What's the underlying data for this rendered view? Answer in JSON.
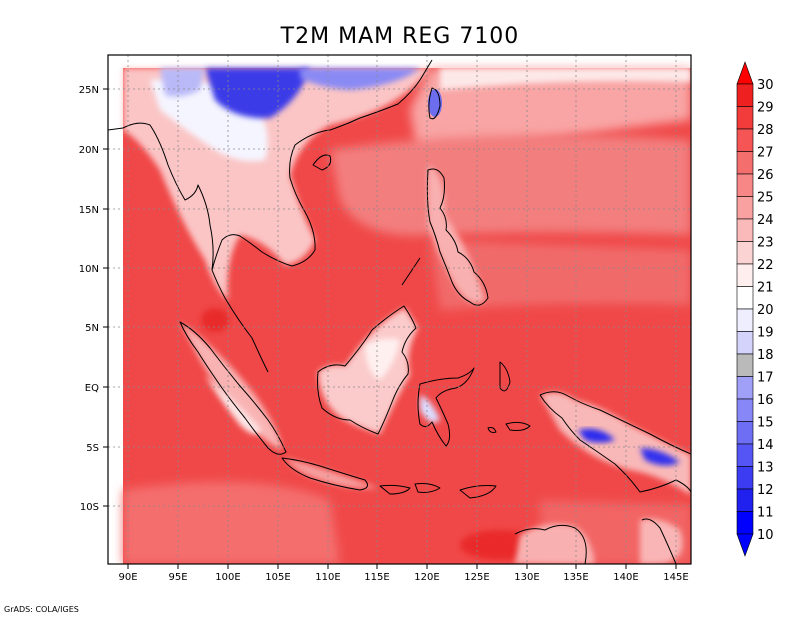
{
  "title": "T2M MAM REG 7100",
  "credit": "GrADS: COLA/IGES",
  "map": {
    "type": "filled-contour",
    "variable": "T2M",
    "lon_range": [
      88,
      146
    ],
    "lat_range": [
      -14,
      27
    ],
    "lon_ticks": [
      "90E",
      "95E",
      "100E",
      "105E",
      "110E",
      "115E",
      "120E",
      "125E",
      "130E",
      "135E",
      "140E",
      "145E"
    ],
    "lat_ticks": [
      "25N",
      "20N",
      "15N",
      "10N",
      "5N",
      "EQ",
      "5S",
      "10S"
    ],
    "grid": true
  },
  "colorbar": {
    "labels": [
      "30",
      "29",
      "28",
      "27",
      "26",
      "25",
      "24",
      "23",
      "22",
      "21",
      "20",
      "19",
      "18",
      "17",
      "16",
      "15",
      "14",
      "13",
      "12",
      "11",
      "10"
    ],
    "colors": [
      "#ff0000",
      "#ef2020",
      "#f23c3c",
      "#f55555",
      "#f56e6e",
      "#f78787",
      "#f9a0a0",
      "#fbbaba",
      "#fcd3d3",
      "#feeeee",
      "#ffffff",
      "#eeeeff",
      "#d3d3fc",
      "#bababb",
      "#a0a0f9",
      "#8787f7",
      "#6e6ef5",
      "#5555f5",
      "#3c3cf2",
      "#2020ef",
      "#0000ff"
    ]
  }
}
